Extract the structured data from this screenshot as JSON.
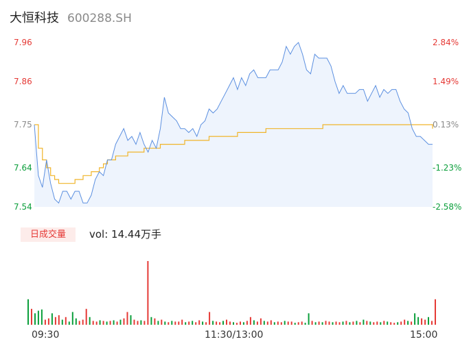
{
  "header": {
    "name": "大恒科技",
    "code": "600288.SH"
  },
  "colors": {
    "up": "#e53935",
    "down": "#0a9e3a",
    "flat": "#8a8a8a",
    "price": "#5b8fe0",
    "avg": "#f0b429",
    "fill": "#eef4fd"
  },
  "chart_data": {
    "type": "line",
    "price_axis": {
      "ticks": [
        {
          "value": "7.96",
          "pct": "2.84%",
          "dir": "up"
        },
        {
          "value": "7.86",
          "pct": "1.49%",
          "dir": "up"
        },
        {
          "value": "7.75",
          "pct": "0.13%",
          "dir": "flat"
        },
        {
          "value": "7.64",
          "pct": "-1.23%",
          "dir": "down"
        },
        {
          "value": "7.54",
          "pct": "-2.58%",
          "dir": "down"
        }
      ],
      "ylim": [
        7.54,
        7.96
      ]
    },
    "x_ticks": [
      "09:30",
      "11:30/13:00",
      "15:00"
    ],
    "series": [
      {
        "type": "line",
        "values": [
          7.75,
          7.62,
          7.59,
          7.66,
          7.6,
          7.56,
          7.55,
          7.58,
          7.58,
          7.56,
          7.58,
          7.58,
          7.55,
          7.55,
          7.57,
          7.61,
          7.63,
          7.62,
          7.66,
          7.66,
          7.7,
          7.72,
          7.74,
          7.71,
          7.72,
          7.7,
          7.73,
          7.7,
          7.68,
          7.71,
          7.69,
          7.74,
          7.82,
          7.78,
          7.77,
          7.76,
          7.74,
          7.74,
          7.73,
          7.74,
          7.72,
          7.75,
          7.76,
          7.79,
          7.78,
          7.79,
          7.81,
          7.83,
          7.85,
          7.87,
          7.84,
          7.87,
          7.85,
          7.88,
          7.89,
          7.87,
          7.87,
          7.87,
          7.89,
          7.89,
          7.89,
          7.91,
          7.95,
          7.93,
          7.95,
          7.96,
          7.93,
          7.89,
          7.88,
          7.93,
          7.92,
          7.92,
          7.92,
          7.9,
          7.86,
          7.83,
          7.85,
          7.83,
          7.83,
          7.83,
          7.84,
          7.84,
          7.81,
          7.83,
          7.85,
          7.82,
          7.84,
          7.83,
          7.84,
          7.84,
          7.81,
          7.79,
          7.78,
          7.74,
          7.72,
          7.72,
          7.71,
          7.7,
          7.7
        ]
      },
      {
        "type": "line",
        "values": [
          7.75,
          7.69,
          7.66,
          7.64,
          7.62,
          7.61,
          7.6,
          7.6,
          7.6,
          7.6,
          7.61,
          7.61,
          7.62,
          7.62,
          7.63,
          7.63,
          7.64,
          7.65,
          7.66,
          7.66,
          7.67,
          7.67,
          7.67,
          7.68,
          7.68,
          7.68,
          7.68,
          7.69,
          7.69,
          7.69,
          7.69,
          7.7,
          7.7,
          7.7,
          7.7,
          7.7,
          7.7,
          7.71,
          7.71,
          7.71,
          7.71,
          7.71,
          7.71,
          7.72,
          7.72,
          7.72,
          7.72,
          7.72,
          7.72,
          7.72,
          7.73,
          7.73,
          7.73,
          7.73,
          7.73,
          7.73,
          7.73,
          7.74,
          7.74,
          7.74,
          7.74,
          7.74,
          7.74,
          7.74,
          7.74,
          7.74,
          7.74,
          7.74,
          7.74,
          7.74,
          7.74,
          7.75,
          7.75,
          7.75,
          7.75,
          7.75,
          7.75,
          7.75,
          7.75,
          7.75,
          7.75,
          7.75,
          7.75,
          7.75,
          7.75,
          7.75,
          7.75,
          7.75,
          7.75,
          7.75,
          7.75,
          7.75,
          7.75,
          7.75,
          7.75,
          7.75,
          7.75,
          7.75,
          7.74
        ]
      }
    ]
  },
  "volume": {
    "badge": "日成交量",
    "label": "vol: 14.44万手",
    "bars": [
      {
        "v": 0.4,
        "d": "down"
      },
      {
        "v": 0.25,
        "d": "up"
      },
      {
        "v": 0.18,
        "d": "down"
      },
      {
        "v": 0.22,
        "d": "down"
      },
      {
        "v": 0.24,
        "d": "down"
      },
      {
        "v": 0.08,
        "d": "up"
      },
      {
        "v": 0.1,
        "d": "up"
      },
      {
        "v": 0.18,
        "d": "down"
      },
      {
        "v": 0.12,
        "d": "up"
      },
      {
        "v": 0.15,
        "d": "up"
      },
      {
        "v": 0.08,
        "d": "down"
      },
      {
        "v": 0.12,
        "d": "up"
      },
      {
        "v": 0.05,
        "d": "down"
      },
      {
        "v": 0.2,
        "d": "down"
      },
      {
        "v": 0.1,
        "d": "down"
      },
      {
        "v": 0.06,
        "d": "up"
      },
      {
        "v": 0.08,
        "d": "up"
      },
      {
        "v": 0.25,
        "d": "up"
      },
      {
        "v": 0.12,
        "d": "down"
      },
      {
        "v": 0.06,
        "d": "up"
      },
      {
        "v": 0.05,
        "d": "up"
      },
      {
        "v": 0.07,
        "d": "down"
      },
      {
        "v": 0.06,
        "d": "up"
      },
      {
        "v": 0.05,
        "d": "down"
      },
      {
        "v": 0.06,
        "d": "up"
      },
      {
        "v": 0.07,
        "d": "down"
      },
      {
        "v": 0.05,
        "d": "up"
      },
      {
        "v": 0.08,
        "d": "down"
      },
      {
        "v": 0.1,
        "d": "up"
      },
      {
        "v": 0.2,
        "d": "up"
      },
      {
        "v": 0.15,
        "d": "down"
      },
      {
        "v": 0.08,
        "d": "up"
      },
      {
        "v": 0.06,
        "d": "up"
      },
      {
        "v": 0.07,
        "d": "down"
      },
      {
        "v": 0.06,
        "d": "up"
      },
      {
        "v": 1.0,
        "d": "up"
      },
      {
        "v": 0.12,
        "d": "down"
      },
      {
        "v": 0.1,
        "d": "up"
      },
      {
        "v": 0.06,
        "d": "down"
      },
      {
        "v": 0.08,
        "d": "up"
      },
      {
        "v": 0.05,
        "d": "down"
      },
      {
        "v": 0.04,
        "d": "up"
      },
      {
        "v": 0.06,
        "d": "down"
      },
      {
        "v": 0.05,
        "d": "up"
      },
      {
        "v": 0.05,
        "d": "up"
      },
      {
        "v": 0.08,
        "d": "up"
      },
      {
        "v": 0.04,
        "d": "down"
      },
      {
        "v": 0.05,
        "d": "up"
      },
      {
        "v": 0.06,
        "d": "down"
      },
      {
        "v": 0.04,
        "d": "up"
      },
      {
        "v": 0.07,
        "d": "up"
      },
      {
        "v": 0.05,
        "d": "down"
      },
      {
        "v": 0.04,
        "d": "up"
      },
      {
        "v": 0.2,
        "d": "up"
      },
      {
        "v": 0.06,
        "d": "down"
      },
      {
        "v": 0.05,
        "d": "up"
      },
      {
        "v": 0.04,
        "d": "up"
      },
      {
        "v": 0.06,
        "d": "down"
      },
      {
        "v": 0.08,
        "d": "up"
      },
      {
        "v": 0.05,
        "d": "up"
      },
      {
        "v": 0.04,
        "d": "down"
      },
      {
        "v": 0.03,
        "d": "up"
      },
      {
        "v": 0.05,
        "d": "up"
      },
      {
        "v": 0.04,
        "d": "down"
      },
      {
        "v": 0.06,
        "d": "up"
      },
      {
        "v": 0.12,
        "d": "up"
      },
      {
        "v": 0.07,
        "d": "down"
      },
      {
        "v": 0.05,
        "d": "up"
      },
      {
        "v": 0.1,
        "d": "up"
      },
      {
        "v": 0.06,
        "d": "down"
      },
      {
        "v": 0.05,
        "d": "up"
      },
      {
        "v": 0.07,
        "d": "up"
      },
      {
        "v": 0.04,
        "d": "down"
      },
      {
        "v": 0.05,
        "d": "up"
      },
      {
        "v": 0.04,
        "d": "up"
      },
      {
        "v": 0.06,
        "d": "down"
      },
      {
        "v": 0.05,
        "d": "up"
      },
      {
        "v": 0.05,
        "d": "up"
      },
      {
        "v": 0.03,
        "d": "down"
      },
      {
        "v": 0.04,
        "d": "up"
      },
      {
        "v": 0.05,
        "d": "up"
      },
      {
        "v": 0.03,
        "d": "down"
      },
      {
        "v": 0.18,
        "d": "down"
      },
      {
        "v": 0.06,
        "d": "up"
      },
      {
        "v": 0.04,
        "d": "down"
      },
      {
        "v": 0.05,
        "d": "up"
      },
      {
        "v": 0.04,
        "d": "down"
      },
      {
        "v": 0.06,
        "d": "up"
      },
      {
        "v": 0.05,
        "d": "up"
      },
      {
        "v": 0.04,
        "d": "down"
      },
      {
        "v": 0.05,
        "d": "up"
      },
      {
        "v": 0.04,
        "d": "up"
      },
      {
        "v": 0.05,
        "d": "down"
      },
      {
        "v": 0.06,
        "d": "up"
      },
      {
        "v": 0.04,
        "d": "down"
      },
      {
        "v": 0.05,
        "d": "up"
      },
      {
        "v": 0.06,
        "d": "down"
      },
      {
        "v": 0.04,
        "d": "up"
      },
      {
        "v": 0.08,
        "d": "down"
      },
      {
        "v": 0.06,
        "d": "up"
      },
      {
        "v": 0.05,
        "d": "down"
      },
      {
        "v": 0.04,
        "d": "up"
      },
      {
        "v": 0.05,
        "d": "up"
      },
      {
        "v": 0.04,
        "d": "down"
      },
      {
        "v": 0.06,
        "d": "up"
      },
      {
        "v": 0.05,
        "d": "down"
      },
      {
        "v": 0.04,
        "d": "up"
      },
      {
        "v": 0.03,
        "d": "up"
      },
      {
        "v": 0.04,
        "d": "down"
      },
      {
        "v": 0.05,
        "d": "up"
      },
      {
        "v": 0.08,
        "d": "up"
      },
      {
        "v": 0.06,
        "d": "down"
      },
      {
        "v": 0.05,
        "d": "up"
      },
      {
        "v": 0.18,
        "d": "down"
      },
      {
        "v": 0.12,
        "d": "down"
      },
      {
        "v": 0.1,
        "d": "up"
      },
      {
        "v": 0.08,
        "d": "up"
      },
      {
        "v": 0.12,
        "d": "down"
      },
      {
        "v": 0.06,
        "d": "up"
      },
      {
        "v": 0.4,
        "d": "up"
      }
    ]
  }
}
